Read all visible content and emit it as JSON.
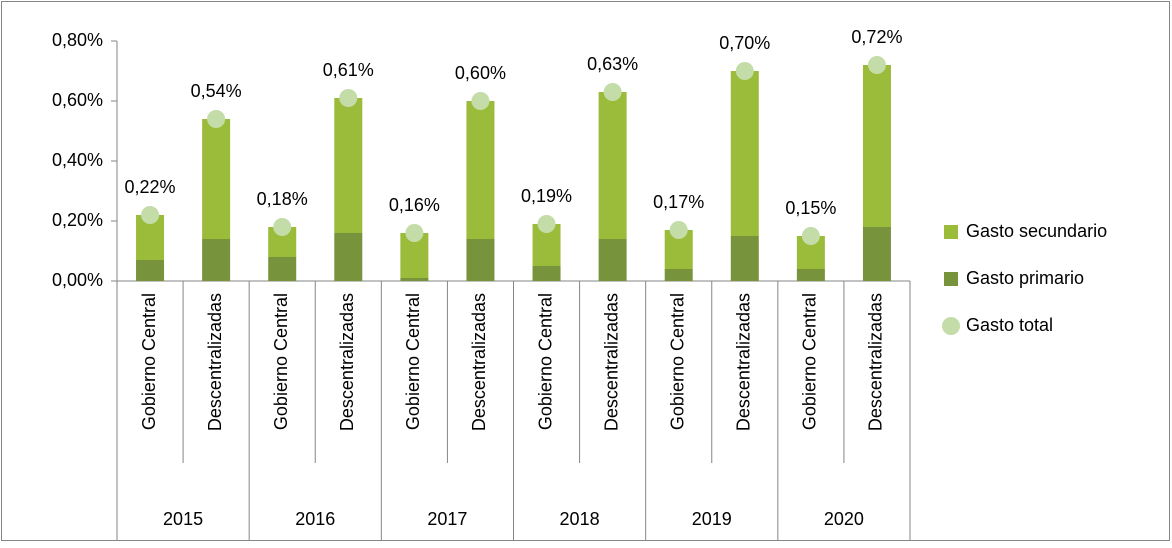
{
  "chart_data": {
    "type": "bar",
    "stacked": true,
    "categories": [
      "Gobierno Central",
      "Descentralizadas",
      "Gobierno Central",
      "Descentralizadas",
      "Gobierno Central",
      "Descentralizadas",
      "Gobierno Central",
      "Descentralizadas",
      "Gobierno Central",
      "Descentralizadas",
      "Gobierno Central",
      "Descentralizadas"
    ],
    "groups": [
      "2015",
      "2016",
      "2017",
      "2018",
      "2019",
      "2020"
    ],
    "series": [
      {
        "name": "Gasto primario",
        "type": "bar",
        "color": "#77933c",
        "values": [
          0.07,
          0.14,
          0.08,
          0.16,
          0.01,
          0.14,
          0.05,
          0.14,
          0.04,
          0.15,
          0.04,
          0.18
        ]
      },
      {
        "name": "Gasto secundario",
        "type": "bar",
        "color": "#9bbb3b",
        "values": [
          0.15,
          0.4,
          0.1,
          0.45,
          0.15,
          0.46,
          0.14,
          0.49,
          0.13,
          0.55,
          0.11,
          0.54
        ]
      },
      {
        "name": "Gasto total",
        "type": "scatter",
        "color": "#c4dca8",
        "values": [
          0.22,
          0.54,
          0.18,
          0.61,
          0.16,
          0.6,
          0.19,
          0.63,
          0.17,
          0.7,
          0.15,
          0.72
        ],
        "value_labels": [
          "0,22%",
          "0,54%",
          "0,18%",
          "0,61%",
          "0,16%",
          "0,60%",
          "0,19%",
          "0,63%",
          "0,17%",
          "0,70%",
          "0,15%",
          "0,72%"
        ]
      }
    ],
    "ylim": [
      0,
      0.8
    ],
    "yticks": [
      {
        "value": 0,
        "label": "0,00%"
      },
      {
        "value": 0.2,
        "label": "0,20%"
      },
      {
        "value": 0.4,
        "label": "0,40%"
      },
      {
        "value": 0.6,
        "label": "0,60%"
      },
      {
        "value": 0.8,
        "label": "0,80%"
      }
    ],
    "grid": false,
    "legend": "right"
  }
}
